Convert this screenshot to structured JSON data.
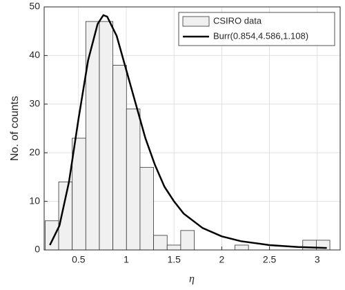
{
  "chart_data": {
    "type": "histogram",
    "xlabel": "η",
    "ylabel": "No. of counts",
    "bins": [
      0.15,
      0.292,
      0.434,
      0.576,
      0.718,
      0.86,
      1.002,
      1.144,
      1.286,
      1.428,
      1.57,
      1.712,
      1.854,
      1.996,
      2.138,
      2.28,
      2.422,
      2.564,
      2.706,
      2.848,
      2.99,
      3.132
    ],
    "series": [
      {
        "name": "CSIRO data",
        "color": "#f0f0f0",
        "values": [
          6,
          14,
          23,
          47,
          47,
          38,
          29,
          17,
          3,
          1,
          4,
          0,
          0,
          0,
          1,
          0,
          0,
          0,
          0,
          2,
          2
        ]
      },
      {
        "name": "Burr(0.854,4.586,1.108)",
        "color": "#000000",
        "type": "line",
        "x": [
          0.2,
          0.3,
          0.4,
          0.5,
          0.6,
          0.7,
          0.76,
          0.8,
          0.9,
          1.0,
          1.1,
          1.2,
          1.3,
          1.4,
          1.5,
          1.6,
          1.8,
          2.0,
          2.2,
          2.5,
          2.8,
          3.1
        ],
        "values": [
          1,
          5,
          14,
          27,
          39,
          46.5,
          48.3,
          48,
          44,
          37,
          30,
          23,
          17.5,
          13,
          10,
          7.5,
          4.5,
          2.8,
          1.8,
          1.0,
          0.6,
          0.4
        ]
      }
    ],
    "xlim": [
      0.14,
      3.24
    ],
    "ylim": [
      0,
      50
    ],
    "xticks": [
      0.5,
      1,
      1.5,
      2,
      2.5,
      3
    ],
    "yticks": [
      0,
      10,
      20,
      30,
      40,
      50
    ],
    "grid": true,
    "legend": "upper right"
  }
}
